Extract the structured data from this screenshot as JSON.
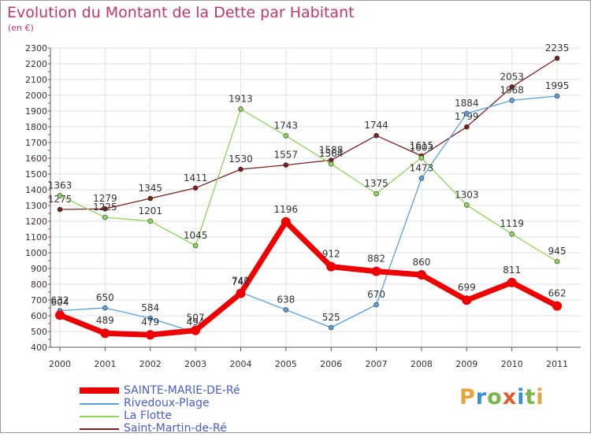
{
  "title": "Evolution du Montant de la Dette par Habitant",
  "subtitle": "(en €)",
  "logo": {
    "text": "Proxiti",
    "colors": [
      "#e8a33d",
      "#3a8fd0",
      "#7ab648",
      "#e05a2a",
      "#3a8fd0",
      "#7ab648",
      "#e8a33d"
    ]
  },
  "chart_data": {
    "type": "line",
    "x": [
      "2000",
      "2001",
      "2002",
      "2003",
      "2004",
      "2005",
      "2006",
      "2007",
      "2008",
      "2009",
      "2010",
      "2011"
    ],
    "ylim": [
      400,
      2300
    ],
    "yticks": [
      "400",
      "500",
      "600",
      "700",
      "800",
      "900",
      "1000",
      "1100",
      "1200",
      "1300",
      "1400",
      "1500",
      "1600",
      "1700",
      "1800",
      "1900",
      "2000",
      "2100",
      "2200",
      "2300"
    ],
    "grid": true,
    "legend_position": "bottom-left",
    "series": [
      {
        "name": "Saint-Martin-de-Ré",
        "color": "#7a1f1f",
        "values": [
          1275,
          1279,
          1345,
          1411,
          1530,
          1557,
          1588,
          1744,
          1615,
          1799,
          2053,
          2235
        ]
      },
      {
        "name": "La Flotte",
        "color": "#8fd45a",
        "values": [
          1363,
          1225,
          1201,
          1045,
          1913,
          1743,
          1564,
          1375,
          1603,
          1303,
          1119,
          945
        ]
      },
      {
        "name": "Rivedoux-Plage",
        "color": "#5ba0d8",
        "values": [
          632,
          650,
          584,
          494,
          749,
          638,
          525,
          670,
          1473,
          1884,
          1968,
          1995
        ]
      },
      {
        "name": "SAINTE-MARIE-DE-Ré",
        "color": "#ee0000",
        "values": [
          604,
          489,
          479,
          507,
          742,
          1196,
          912,
          882,
          860,
          699,
          811,
          662
        ]
      }
    ],
    "legend": [
      "SAINTE-MARIE-DE-Ré",
      "Rivedoux-Plage",
      "La Flotte",
      "Saint-Martin-de-Ré"
    ]
  }
}
